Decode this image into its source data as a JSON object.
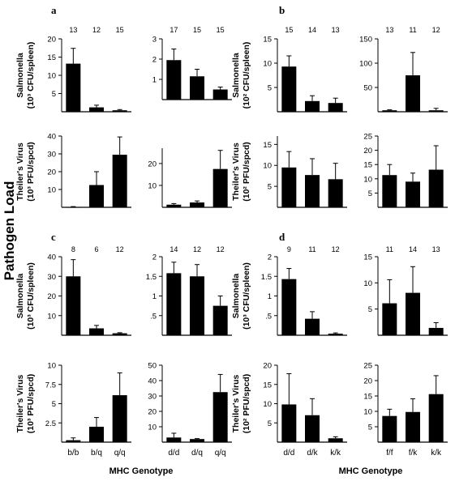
{
  "figure": {
    "side_label": "Pathogen Load",
    "x_axis_label": "MHC Genotype",
    "panel_letters": [
      "a",
      "b",
      "c",
      "d"
    ]
  },
  "chart_data": [
    {
      "id": "a-sal-1",
      "type": "bar",
      "categories": [
        "b/b",
        "b/q",
        "q/q"
      ],
      "values": [
        13.2,
        1.2,
        0.4
      ],
      "errors": [
        4.2,
        0.6,
        0.2
      ],
      "n": [
        "13",
        "12",
        "15"
      ],
      "ylim": [
        0,
        20
      ],
      "ticks": [
        5,
        10,
        15,
        20
      ],
      "ylabel_line1": "Salmonella",
      "ylabel_line2": "(10³ CFU/spleen)"
    },
    {
      "id": "a-sal-2",
      "type": "bar",
      "categories": [
        "d/d",
        "d/q",
        "q/q"
      ],
      "values": [
        1.95,
        1.15,
        0.5
      ],
      "errors": [
        0.55,
        0.35,
        0.12
      ],
      "n": [
        "17",
        "15",
        "15"
      ],
      "ylim": [
        0,
        3
      ],
      "ticks": [
        1,
        2,
        3
      ]
    },
    {
      "id": "a-tv-1",
      "type": "bar",
      "categories": [
        "b/b",
        "b/q",
        "q/q"
      ],
      "values": [
        0.2,
        12.5,
        29.5
      ],
      "errors": [
        0.2,
        7.5,
        10
      ],
      "n": [],
      "ylim": [
        0,
        40
      ],
      "ticks": [
        10,
        20,
        30,
        40
      ],
      "ylabel_line1": "Theiler's Virus",
      "ylabel_line2": "(10³ PFU/spcd)"
    },
    {
      "id": "a-tv-2",
      "type": "bar",
      "categories": [
        "d/d",
        "d/q",
        "q/q"
      ],
      "values": [
        1.2,
        2.2,
        17.5
      ],
      "errors": [
        0.5,
        0.7,
        8.5
      ],
      "n": [],
      "ylim": [
        0,
        27
      ],
      "ticks": [
        10,
        20
      ]
    },
    {
      "id": "b-sal-1",
      "type": "bar",
      "categories": [
        "d/d",
        "d/k",
        "k/k"
      ],
      "values": [
        9.3,
        2.2,
        1.8
      ],
      "errors": [
        2.2,
        1.1,
        1.0
      ],
      "n": [
        "15",
        "14",
        "13"
      ],
      "ylim": [
        0,
        15
      ],
      "ticks": [
        5,
        10,
        15
      ],
      "ylabel_line1": "Salmonella",
      "ylabel_line2": "(10² CFU/spleen)"
    },
    {
      "id": "b-sal-2",
      "type": "bar",
      "categories": [
        "f/f",
        "f/k",
        "k/k"
      ],
      "values": [
        3,
        75,
        3
      ],
      "errors": [
        1,
        47,
        4
      ],
      "n": [
        "13",
        "11",
        "12"
      ],
      "ylim": [
        0,
        150
      ],
      "ticks": [
        50,
        100,
        150
      ]
    },
    {
      "id": "b-tv-1",
      "type": "bar",
      "categories": [
        "d/d",
        "d/k",
        "k/k"
      ],
      "values": [
        9.5,
        7.7,
        6.7
      ],
      "errors": [
        3.8,
        3.9,
        3.8
      ],
      "n": [],
      "ylim": [
        0,
        17
      ],
      "ticks": [
        5,
        10,
        15
      ],
      "ylabel_line1": "Theiler's Virus",
      "ylabel_line2": "(10² PFU/spcd)"
    },
    {
      "id": "b-tv-2",
      "type": "bar",
      "categories": [
        "f/f",
        "f/k",
        "k/k"
      ],
      "values": [
        11.3,
        9.0,
        13.2
      ],
      "errors": [
        3.7,
        3.0,
        8.4
      ],
      "n": [],
      "ylim": [
        0,
        25
      ],
      "ticks": [
        5,
        10,
        15,
        20,
        25
      ]
    },
    {
      "id": "c-sal-1",
      "type": "bar",
      "categories": [
        "b/b",
        "b/q",
        "q/q"
      ],
      "values": [
        30,
        3.5,
        1
      ],
      "errors": [
        8.5,
        1.5,
        0.3
      ],
      "n": [
        "8",
        "6",
        "12"
      ],
      "ylim": [
        0,
        40
      ],
      "ticks": [
        10,
        20,
        30,
        40
      ],
      "ylabel_line1": "Salmonella",
      "ylabel_line2": "(10³ CFU/spleen)"
    },
    {
      "id": "c-sal-2",
      "type": "bar",
      "categories": [
        "d/d",
        "d/q",
        "q/q"
      ],
      "values": [
        1.58,
        1.5,
        0.75
      ],
      "errors": [
        0.28,
        0.3,
        0.25
      ],
      "n": [
        "14",
        "12",
        "12"
      ],
      "ylim": [
        0,
        2
      ],
      "ticks": [
        0.5,
        1,
        1.5,
        2
      ],
      "tick_labels": [
        ".5",
        "1",
        "1.5",
        "2"
      ]
    },
    {
      "id": "c-tv-1",
      "type": "bar",
      "categories": [
        "b/b",
        "b/q",
        "q/q"
      ],
      "values": [
        0.25,
        2,
        6.1
      ],
      "errors": [
        0.3,
        1.2,
        2.9
      ],
      "n": [],
      "ylim": [
        0,
        10
      ],
      "ticks": [
        2.5,
        5,
        7.5,
        10
      ],
      "ylabel_line1": "Theiler's Virus",
      "ylabel_line2": "(10³ PFU/spcd)"
    },
    {
      "id": "c-tv-2",
      "type": "bar",
      "categories": [
        "d/d",
        "d/q",
        "q/q"
      ],
      "values": [
        3,
        2,
        32.5
      ],
      "errors": [
        2.8,
        0.3,
        11.5
      ],
      "n": [],
      "ylim": [
        0,
        50
      ],
      "ticks": [
        10,
        20,
        30,
        40,
        50
      ]
    },
    {
      "id": "d-sal-1",
      "type": "bar",
      "categories": [
        "d/d",
        "d/k",
        "k/k"
      ],
      "values": [
        1.43,
        0.42,
        0.04
      ],
      "errors": [
        0.27,
        0.18,
        0.02
      ],
      "n": [
        "9",
        "11",
        "12"
      ],
      "ylim": [
        0,
        2
      ],
      "ticks": [
        0.5,
        1,
        1.5,
        2
      ],
      "tick_labels": [
        ".5",
        "1",
        "1.5",
        "2"
      ],
      "ylabel_line1": "Salmonella",
      "ylabel_line2": "(10³ CFU/spleen)"
    },
    {
      "id": "d-sal-2",
      "type": "bar",
      "categories": [
        "f/f",
        "f/k",
        "k/k"
      ],
      "values": [
        6.1,
        8.1,
        1.4
      ],
      "errors": [
        4.5,
        5.0,
        1.0
      ],
      "n": [
        "11",
        "14",
        "13"
      ],
      "ylim": [
        0,
        15
      ],
      "ticks": [
        5,
        10,
        15
      ],
      "tick_labels": [
        "5",
        "10",
        "15"
      ]
    },
    {
      "id": "d-tv-1",
      "type": "bar",
      "categories": [
        "d/d",
        "d/k",
        "k/k"
      ],
      "values": [
        9.8,
        7.0,
        1.0
      ],
      "errors": [
        8.0,
        4.3,
        0.4
      ],
      "n": [],
      "ylim": [
        0,
        20
      ],
      "ticks": [
        5,
        10,
        15,
        20
      ],
      "ylabel_line1": "Theiler's Virus",
      "ylabel_line2": "(10² PFU/spcd)"
    },
    {
      "id": "d-tv-2",
      "type": "bar",
      "categories": [
        "f/f",
        "f/k",
        "k/k"
      ],
      "values": [
        8.5,
        9.8,
        15.6
      ],
      "errors": [
        2.2,
        4.3,
        6.0
      ],
      "n": [],
      "ylim": [
        0,
        25
      ],
      "ticks": [
        5,
        10,
        15,
        20,
        25
      ]
    }
  ]
}
